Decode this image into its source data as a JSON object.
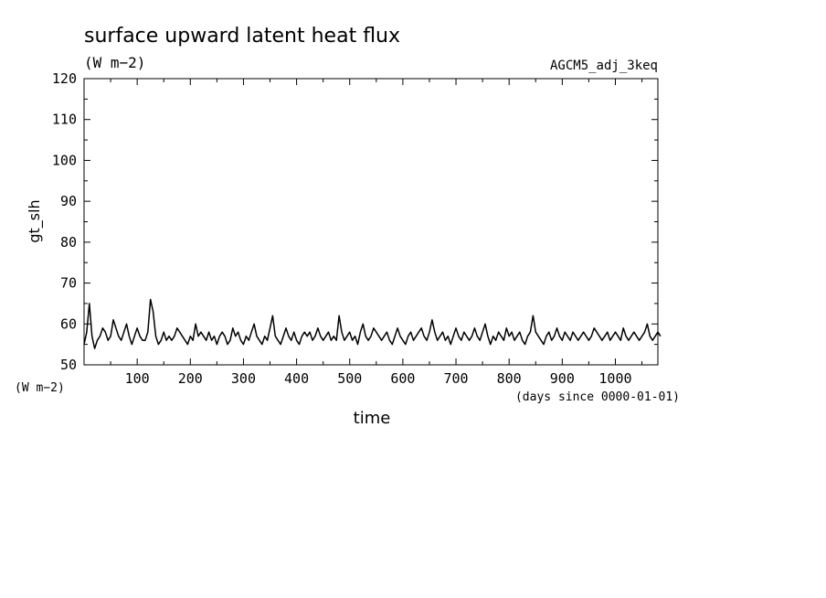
{
  "chart_data": {
    "type": "line",
    "title": "surface upward latent heat flux",
    "subtitle": "(W m−2)",
    "experiment": "AGCM5_adj_3keq",
    "ylabel": "gt_slh",
    "yunit": "(W m−2)",
    "xlabel": "time",
    "xunit": "(days since 0000-01-01)",
    "xlim": [
      0,
      1080
    ],
    "ylim": [
      50,
      120
    ],
    "xticks": [
      100,
      200,
      300,
      400,
      500,
      600,
      700,
      800,
      900,
      1000
    ],
    "yticks": [
      50,
      60,
      70,
      80,
      90,
      100,
      110,
      120
    ],
    "x_start": 0,
    "x_step": 5,
    "series": [
      {
        "values": [
          55,
          58,
          65,
          57,
          54,
          56,
          57,
          59,
          58,
          56,
          57,
          61,
          59,
          57,
          56,
          58,
          60,
          57,
          55,
          57,
          59,
          57,
          56,
          56,
          58,
          66,
          63,
          57,
          55,
          56,
          58,
          56,
          57,
          56,
          57,
          59,
          58,
          57,
          56,
          55,
          57,
          56,
          60,
          57,
          58,
          57,
          56,
          58,
          56,
          57,
          55,
          57,
          58,
          57,
          55,
          56,
          59,
          57,
          58,
          56,
          55,
          57,
          56,
          58,
          60,
          57,
          56,
          55,
          57,
          56,
          59,
          62,
          57,
          56,
          55,
          57,
          59,
          57,
          56,
          58,
          56,
          55,
          57,
          58,
          57,
          58,
          56,
          57,
          59,
          57,
          56,
          57,
          58,
          56,
          57,
          56,
          62,
          58,
          56,
          57,
          58,
          56,
          57,
          55,
          58,
          60,
          57,
          56,
          57,
          59,
          58,
          57,
          56,
          57,
          58,
          56,
          55,
          57,
          59,
          57,
          56,
          55,
          57,
          58,
          56,
          57,
          58,
          59,
          57,
          56,
          58,
          61,
          58,
          56,
          57,
          58,
          56,
          57,
          55,
          57,
          59,
          57,
          56,
          58,
          57,
          56,
          57,
          59,
          57,
          56,
          58,
          60,
          57,
          55,
          57,
          56,
          58,
          57,
          56,
          59,
          57,
          58,
          56,
          57,
          58,
          56,
          55,
          57,
          58,
          62,
          58,
          57,
          56,
          55,
          57,
          58,
          56,
          57,
          59,
          57,
          56,
          58,
          57,
          56,
          58,
          57,
          56,
          57,
          58,
          57,
          56,
          57,
          59,
          58,
          57,
          56,
          57,
          58,
          56,
          57,
          58,
          57,
          56,
          59,
          57,
          56,
          57,
          58,
          57,
          56,
          57,
          58,
          60,
          57,
          56,
          57,
          58,
          57
        ]
      }
    ],
    "grid": false,
    "legend": "none"
  }
}
